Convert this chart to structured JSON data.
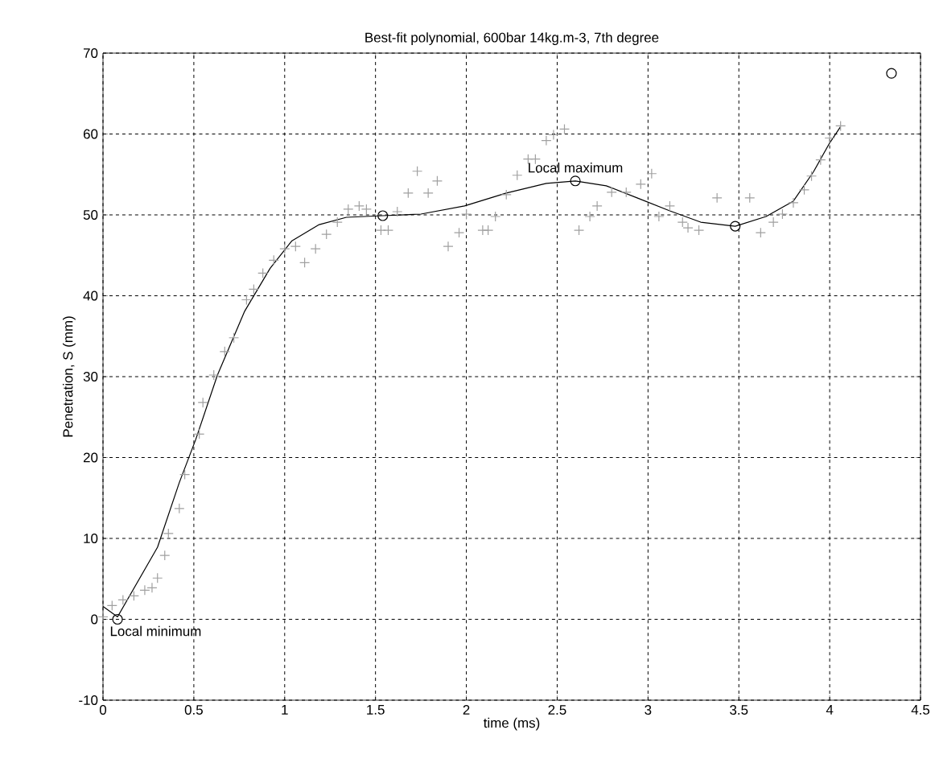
{
  "chart_data": {
    "type": "scatter",
    "title": "Best-fit polynomial, 600bar 14kg.m-3, 7th degree",
    "xlabel": "time (ms)",
    "ylabel": "Penetration, S (mm)",
    "xlim": [
      0,
      4.5
    ],
    "ylim": [
      -10,
      70
    ],
    "xticks": [
      0,
      0.5,
      1,
      1.5,
      2,
      2.5,
      3,
      3.5,
      4,
      4.5
    ],
    "yticks": [
      -10,
      0,
      10,
      20,
      30,
      40,
      50,
      60,
      70
    ],
    "grid": true,
    "series": [
      {
        "marker": "cross",
        "color": "#a0a0a0",
        "x": [
          0,
          0.05,
          0.11,
          0.17,
          0.23,
          0.27,
          0.3,
          0.34,
          0.36,
          0.42,
          0.45,
          0.53,
          0.55,
          0.61,
          0.67,
          0.72,
          0.79,
          0.83,
          0.88,
          0.94,
          1.0,
          1.06,
          1.11,
          1.17,
          1.23,
          1.29,
          1.35,
          1.41,
          1.45,
          1.53,
          1.57,
          1.62,
          1.68,
          1.73,
          1.79,
          1.84,
          1.9,
          1.96,
          2.0,
          2.09,
          2.12,
          2.16,
          2.22,
          2.28,
          2.34,
          2.38,
          2.44,
          2.48,
          2.54,
          2.62,
          2.68,
          2.72,
          2.8,
          2.88,
          2.96,
          3.02,
          3.06,
          3.12,
          3.19,
          3.22,
          3.28,
          3.38,
          3.56,
          3.62,
          3.69,
          3.74,
          3.8,
          3.86,
          3.9,
          3.95,
          4.0,
          4.06
        ],
        "values": [
          0.3,
          1.7,
          2.4,
          2.9,
          3.6,
          3.9,
          5.1,
          7.9,
          10.6,
          13.7,
          17.9,
          22.9,
          26.8,
          30.2,
          33.1,
          34.8,
          39.5,
          40.8,
          42.8,
          44.4,
          45.8,
          46.1,
          44.1,
          45.8,
          47.6,
          49.1,
          50.7,
          51.1,
          50.7,
          48.1,
          48.1,
          50.4,
          52.7,
          55.4,
          52.7,
          54.2,
          46.1,
          47.8,
          50.1,
          48.1,
          48.1,
          49.8,
          52.5,
          54.9,
          56.9,
          56.9,
          59.2,
          59.9,
          60.6,
          48.1,
          49.8,
          51.1,
          52.8,
          52.8,
          53.8,
          55.1,
          49.8,
          51.1,
          49.1,
          48.4,
          48.1,
          52.1,
          52.1,
          47.8,
          49.1,
          50.1,
          51.5,
          53.1,
          54.8,
          56.8,
          59.5,
          61.0
        ]
      },
      {
        "type": "line",
        "marker": "none",
        "line_style": "solid",
        "color": "#000000",
        "x": [
          0,
          0.08,
          0.3,
          0.42,
          0.51,
          0.63,
          0.78,
          0.92,
          1.04,
          1.19,
          1.34,
          1.54,
          1.75,
          1.99,
          2.22,
          2.44,
          2.6,
          2.77,
          2.94,
          3.12,
          3.29,
          3.48,
          3.65,
          3.8,
          3.91,
          4.0,
          4.06
        ],
        "values": [
          1.6,
          0.3,
          8.9,
          16.9,
          22.2,
          30.2,
          38.1,
          43.4,
          46.8,
          48.8,
          49.7,
          49.9,
          50.1,
          51.1,
          52.7,
          53.9,
          54.2,
          53.6,
          52.1,
          50.5,
          49.1,
          48.6,
          49.8,
          51.7,
          55.3,
          58.9,
          60.9
        ]
      },
      {
        "marker": "circle",
        "color": "#000000",
        "x": [
          0.08,
          1.54,
          2.6,
          3.48,
          4.34
        ],
        "values": [
          0.0,
          49.9,
          54.2,
          48.6,
          67.5
        ]
      }
    ],
    "annotations": [
      {
        "text": "Local minimum",
        "x": 0.08,
        "y": 0.0
      },
      {
        "text": "Local maximum",
        "x": 2.6,
        "y": 54.2
      }
    ]
  }
}
